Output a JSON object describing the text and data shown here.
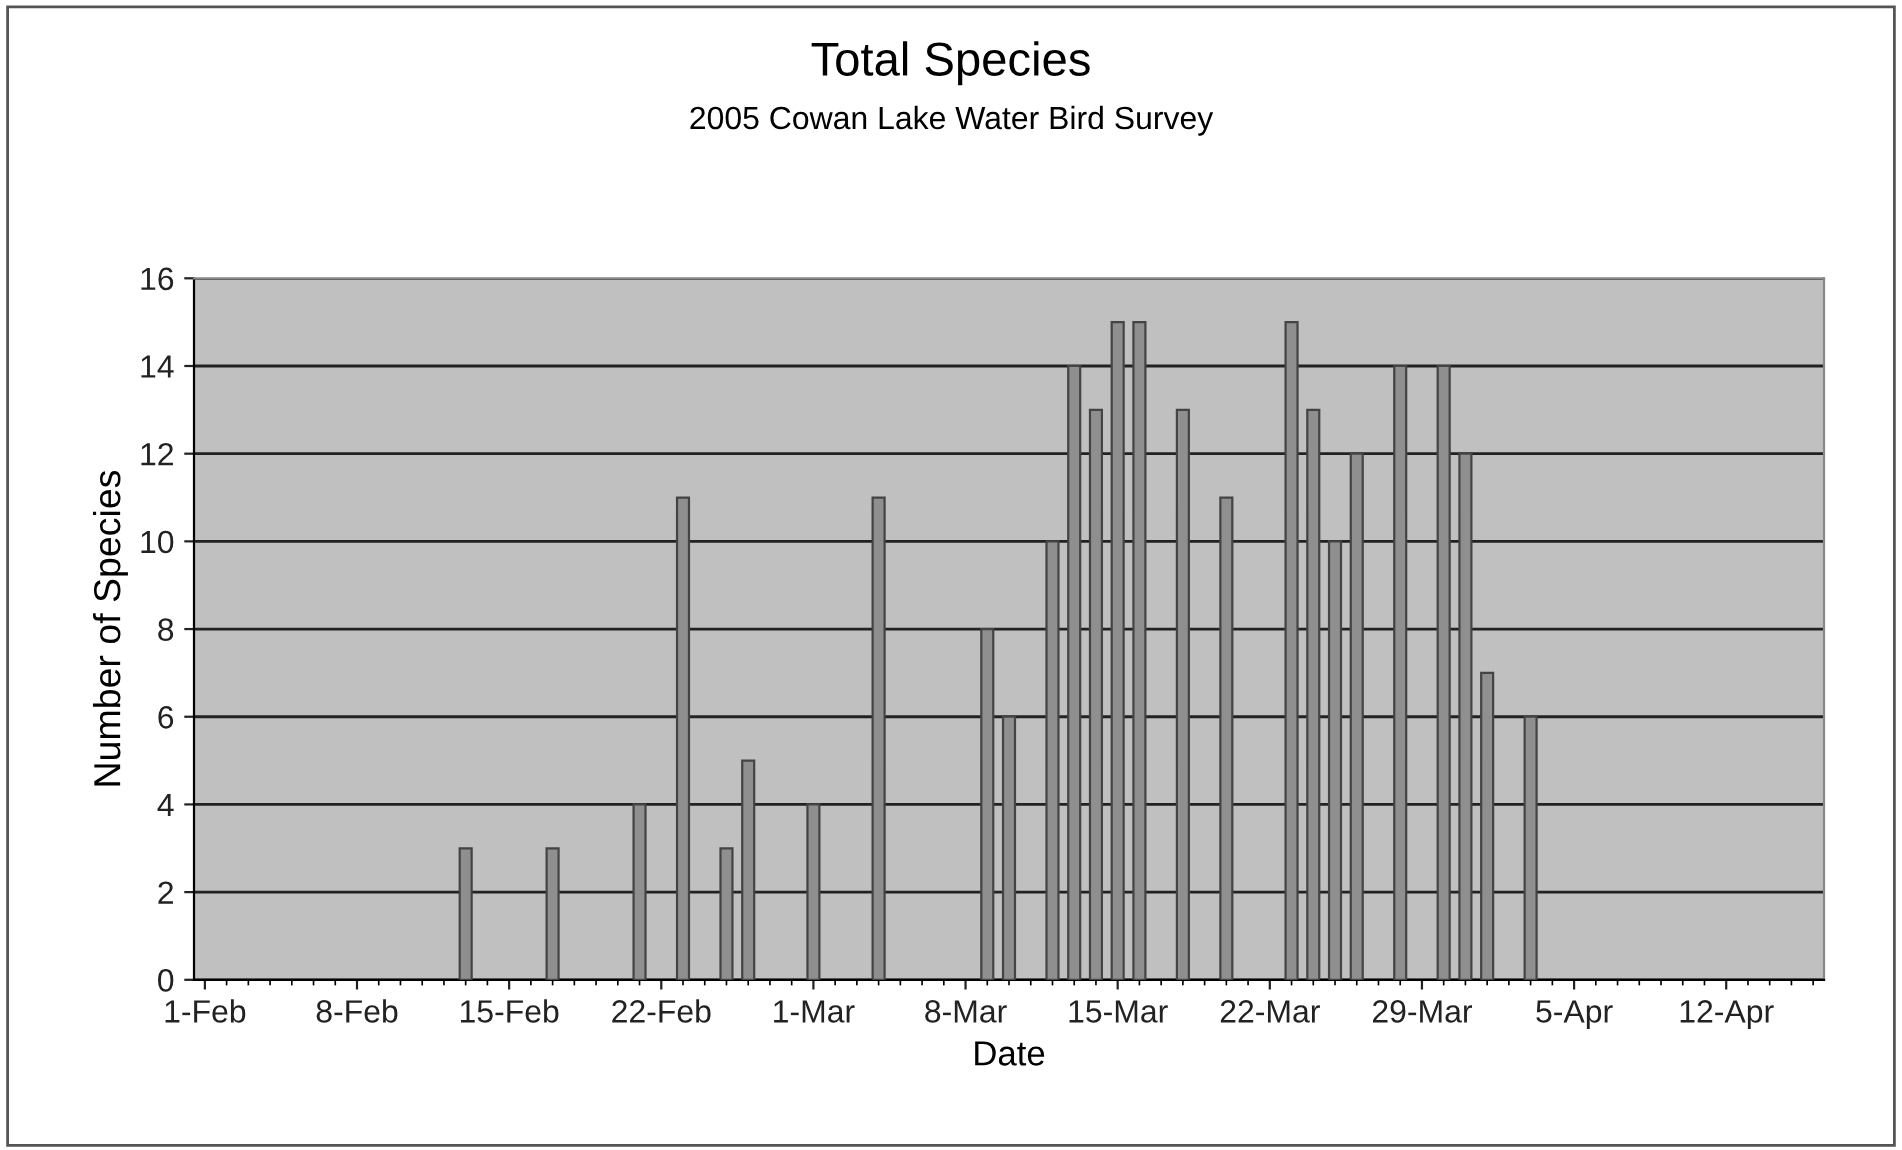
{
  "chart_data": {
    "type": "bar",
    "title": "Total Species",
    "subtitle": "2005 Cowan Lake Water Bird Survey",
    "xlabel": "Date",
    "ylabel": "Number of Species",
    "x": [
      "2005-02-13",
      "2005-02-17",
      "2005-02-21",
      "2005-02-23",
      "2005-02-25",
      "2005-02-26",
      "2005-03-01",
      "2005-03-04",
      "2005-03-09",
      "2005-03-10",
      "2005-03-12",
      "2005-03-13",
      "2005-03-14",
      "2005-03-15",
      "2005-03-16",
      "2005-03-18",
      "2005-03-20",
      "2005-03-23",
      "2005-03-24",
      "2005-03-25",
      "2005-03-26",
      "2005-03-28",
      "2005-03-30",
      "2005-03-31",
      "2005-04-01",
      "2005-04-03"
    ],
    "values": [
      3,
      3,
      4,
      11,
      3,
      5,
      4,
      11,
      8,
      6,
      10,
      14,
      13,
      15,
      15,
      13,
      11,
      15,
      13,
      10,
      12,
      14,
      14,
      12,
      7,
      6
    ],
    "color": "#8f8f8f",
    "xlim": [
      "2005-01-31T12:00",
      "2005-04-16T12:00"
    ],
    "xticks": [
      {
        "value": "2005-02-01",
        "label": "1-Feb"
      },
      {
        "value": "2005-02-08",
        "label": "8-Feb"
      },
      {
        "value": "2005-02-15",
        "label": "15-Feb"
      },
      {
        "value": "2005-02-22",
        "label": "22-Feb"
      },
      {
        "value": "2005-03-01",
        "label": "1-Mar"
      },
      {
        "value": "2005-03-08",
        "label": "8-Mar"
      },
      {
        "value": "2005-03-15",
        "label": "15-Mar"
      },
      {
        "value": "2005-03-22",
        "label": "22-Mar"
      },
      {
        "value": "2005-03-29",
        "label": "29-Mar"
      },
      {
        "value": "2005-04-05",
        "label": "5-Apr"
      },
      {
        "value": "2005-04-12",
        "label": "12-Apr"
      }
    ],
    "ylim": [
      0,
      16
    ],
    "yticks": [
      0,
      2,
      4,
      6,
      8,
      10,
      12,
      14,
      16
    ],
    "grid": "y",
    "legend": false
  }
}
